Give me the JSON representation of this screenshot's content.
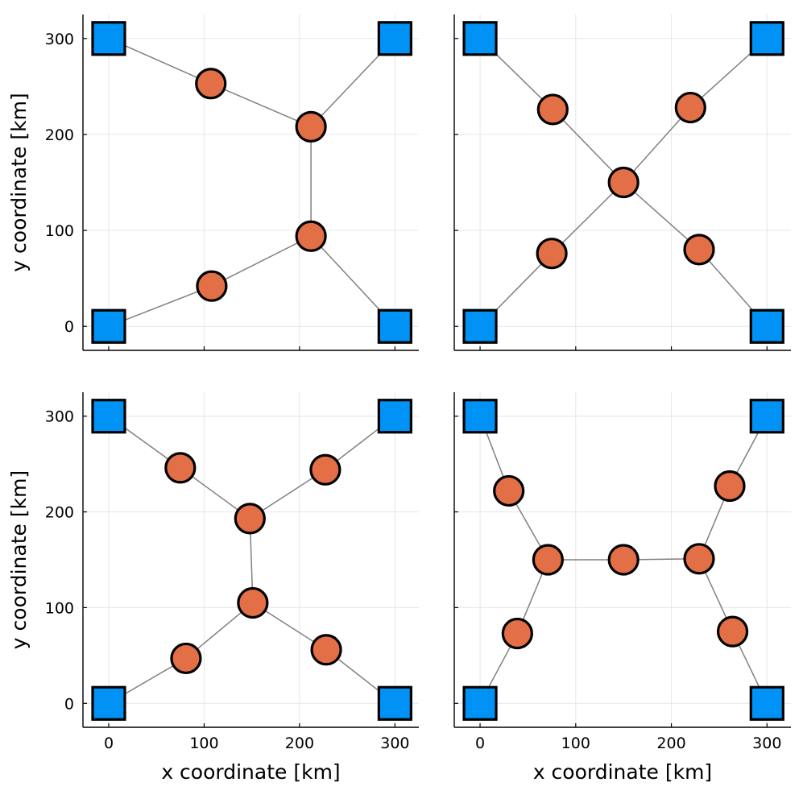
{
  "chart_data": {
    "type": "scatter",
    "layout": "2x2 grid of network plots",
    "shared": {
      "xlabel": "x coordinate [km]",
      "ylabel": "y coordinate [km]",
      "xlim": [
        -27,
        325
      ],
      "ylim": [
        -25,
        325
      ],
      "xticks": [
        0,
        100,
        200,
        300
      ],
      "yticks": [
        0,
        100,
        200,
        300
      ],
      "grid": true,
      "colors": {
        "terminal": "#0092f5",
        "steiner": "#e26f46",
        "edge": "#808080",
        "outline": "#000000",
        "grid": "#e6e6e6"
      },
      "terminals": [
        [
          0,
          300
        ],
        [
          300,
          300
        ],
        [
          0,
          0
        ],
        [
          300,
          0
        ]
      ]
    },
    "panels": [
      {
        "name": "top-left",
        "show_xlabel": false,
        "show_ylabel": true,
        "show_xticklabels": false,
        "show_yticklabels": true,
        "steiner_points": [
          [
            107,
            253
          ],
          [
            212,
            208
          ],
          [
            212,
            94
          ],
          [
            108,
            42
          ]
        ],
        "edges": [
          [
            [
              0,
              300
            ],
            [
              107,
              253
            ]
          ],
          [
            [
              107,
              253
            ],
            [
              212,
              208
            ]
          ],
          [
            [
              300,
              300
            ],
            [
              212,
              208
            ]
          ],
          [
            [
              212,
              208
            ],
            [
              212,
              94
            ]
          ],
          [
            [
              0,
              0
            ],
            [
              108,
              42
            ]
          ],
          [
            [
              108,
              42
            ],
            [
              212,
              94
            ]
          ],
          [
            [
              212,
              94
            ],
            [
              300,
              0
            ]
          ]
        ]
      },
      {
        "name": "top-right",
        "show_xlabel": false,
        "show_ylabel": false,
        "show_xticklabels": false,
        "show_yticklabels": false,
        "steiner_points": [
          [
            76,
            226
          ],
          [
            220,
            228
          ],
          [
            150,
            150
          ],
          [
            75,
            76
          ],
          [
            229,
            80
          ]
        ],
        "edges": [
          [
            [
              0,
              300
            ],
            [
              76,
              226
            ]
          ],
          [
            [
              76,
              226
            ],
            [
              150,
              150
            ]
          ],
          [
            [
              300,
              300
            ],
            [
              220,
              228
            ]
          ],
          [
            [
              220,
              228
            ],
            [
              150,
              150
            ]
          ],
          [
            [
              0,
              0
            ],
            [
              75,
              76
            ]
          ],
          [
            [
              75,
              76
            ],
            [
              150,
              150
            ]
          ],
          [
            [
              150,
              150
            ],
            [
              229,
              80
            ]
          ],
          [
            [
              229,
              80
            ],
            [
              300,
              0
            ]
          ]
        ]
      },
      {
        "name": "bottom-left",
        "show_xlabel": true,
        "show_ylabel": true,
        "show_xticklabels": true,
        "show_yticklabels": true,
        "steiner_points": [
          [
            75,
            246
          ],
          [
            227,
            244
          ],
          [
            148,
            193
          ],
          [
            151,
            105
          ],
          [
            81,
            47
          ],
          [
            228,
            56
          ]
        ],
        "edges": [
          [
            [
              0,
              300
            ],
            [
              75,
              246
            ]
          ],
          [
            [
              75,
              246
            ],
            [
              148,
              193
            ]
          ],
          [
            [
              300,
              300
            ],
            [
              227,
              244
            ]
          ],
          [
            [
              227,
              244
            ],
            [
              148,
              193
            ]
          ],
          [
            [
              148,
              193
            ],
            [
              151,
              105
            ]
          ],
          [
            [
              0,
              0
            ],
            [
              81,
              47
            ]
          ],
          [
            [
              81,
              47
            ],
            [
              151,
              105
            ]
          ],
          [
            [
              151,
              105
            ],
            [
              228,
              56
            ]
          ],
          [
            [
              228,
              56
            ],
            [
              300,
              0
            ]
          ]
        ]
      },
      {
        "name": "bottom-right",
        "show_xlabel": true,
        "show_ylabel": false,
        "show_xticklabels": true,
        "show_yticklabels": false,
        "steiner_points": [
          [
            30,
            222
          ],
          [
            261,
            227
          ],
          [
            71,
            150
          ],
          [
            150,
            150
          ],
          [
            229,
            151
          ],
          [
            39,
            73
          ],
          [
            264,
            75
          ]
        ],
        "edges": [
          [
            [
              0,
              300
            ],
            [
              30,
              222
            ]
          ],
          [
            [
              30,
              222
            ],
            [
              71,
              150
            ]
          ],
          [
            [
              300,
              300
            ],
            [
              261,
              227
            ]
          ],
          [
            [
              261,
              227
            ],
            [
              229,
              151
            ]
          ],
          [
            [
              71,
              150
            ],
            [
              150,
              150
            ]
          ],
          [
            [
              150,
              150
            ],
            [
              229,
              151
            ]
          ],
          [
            [
              0,
              0
            ],
            [
              39,
              73
            ]
          ],
          [
            [
              39,
              73
            ],
            [
              71,
              150
            ]
          ],
          [
            [
              229,
              151
            ],
            [
              264,
              75
            ]
          ],
          [
            [
              264,
              75
            ],
            [
              300,
              0
            ]
          ]
        ]
      }
    ]
  }
}
